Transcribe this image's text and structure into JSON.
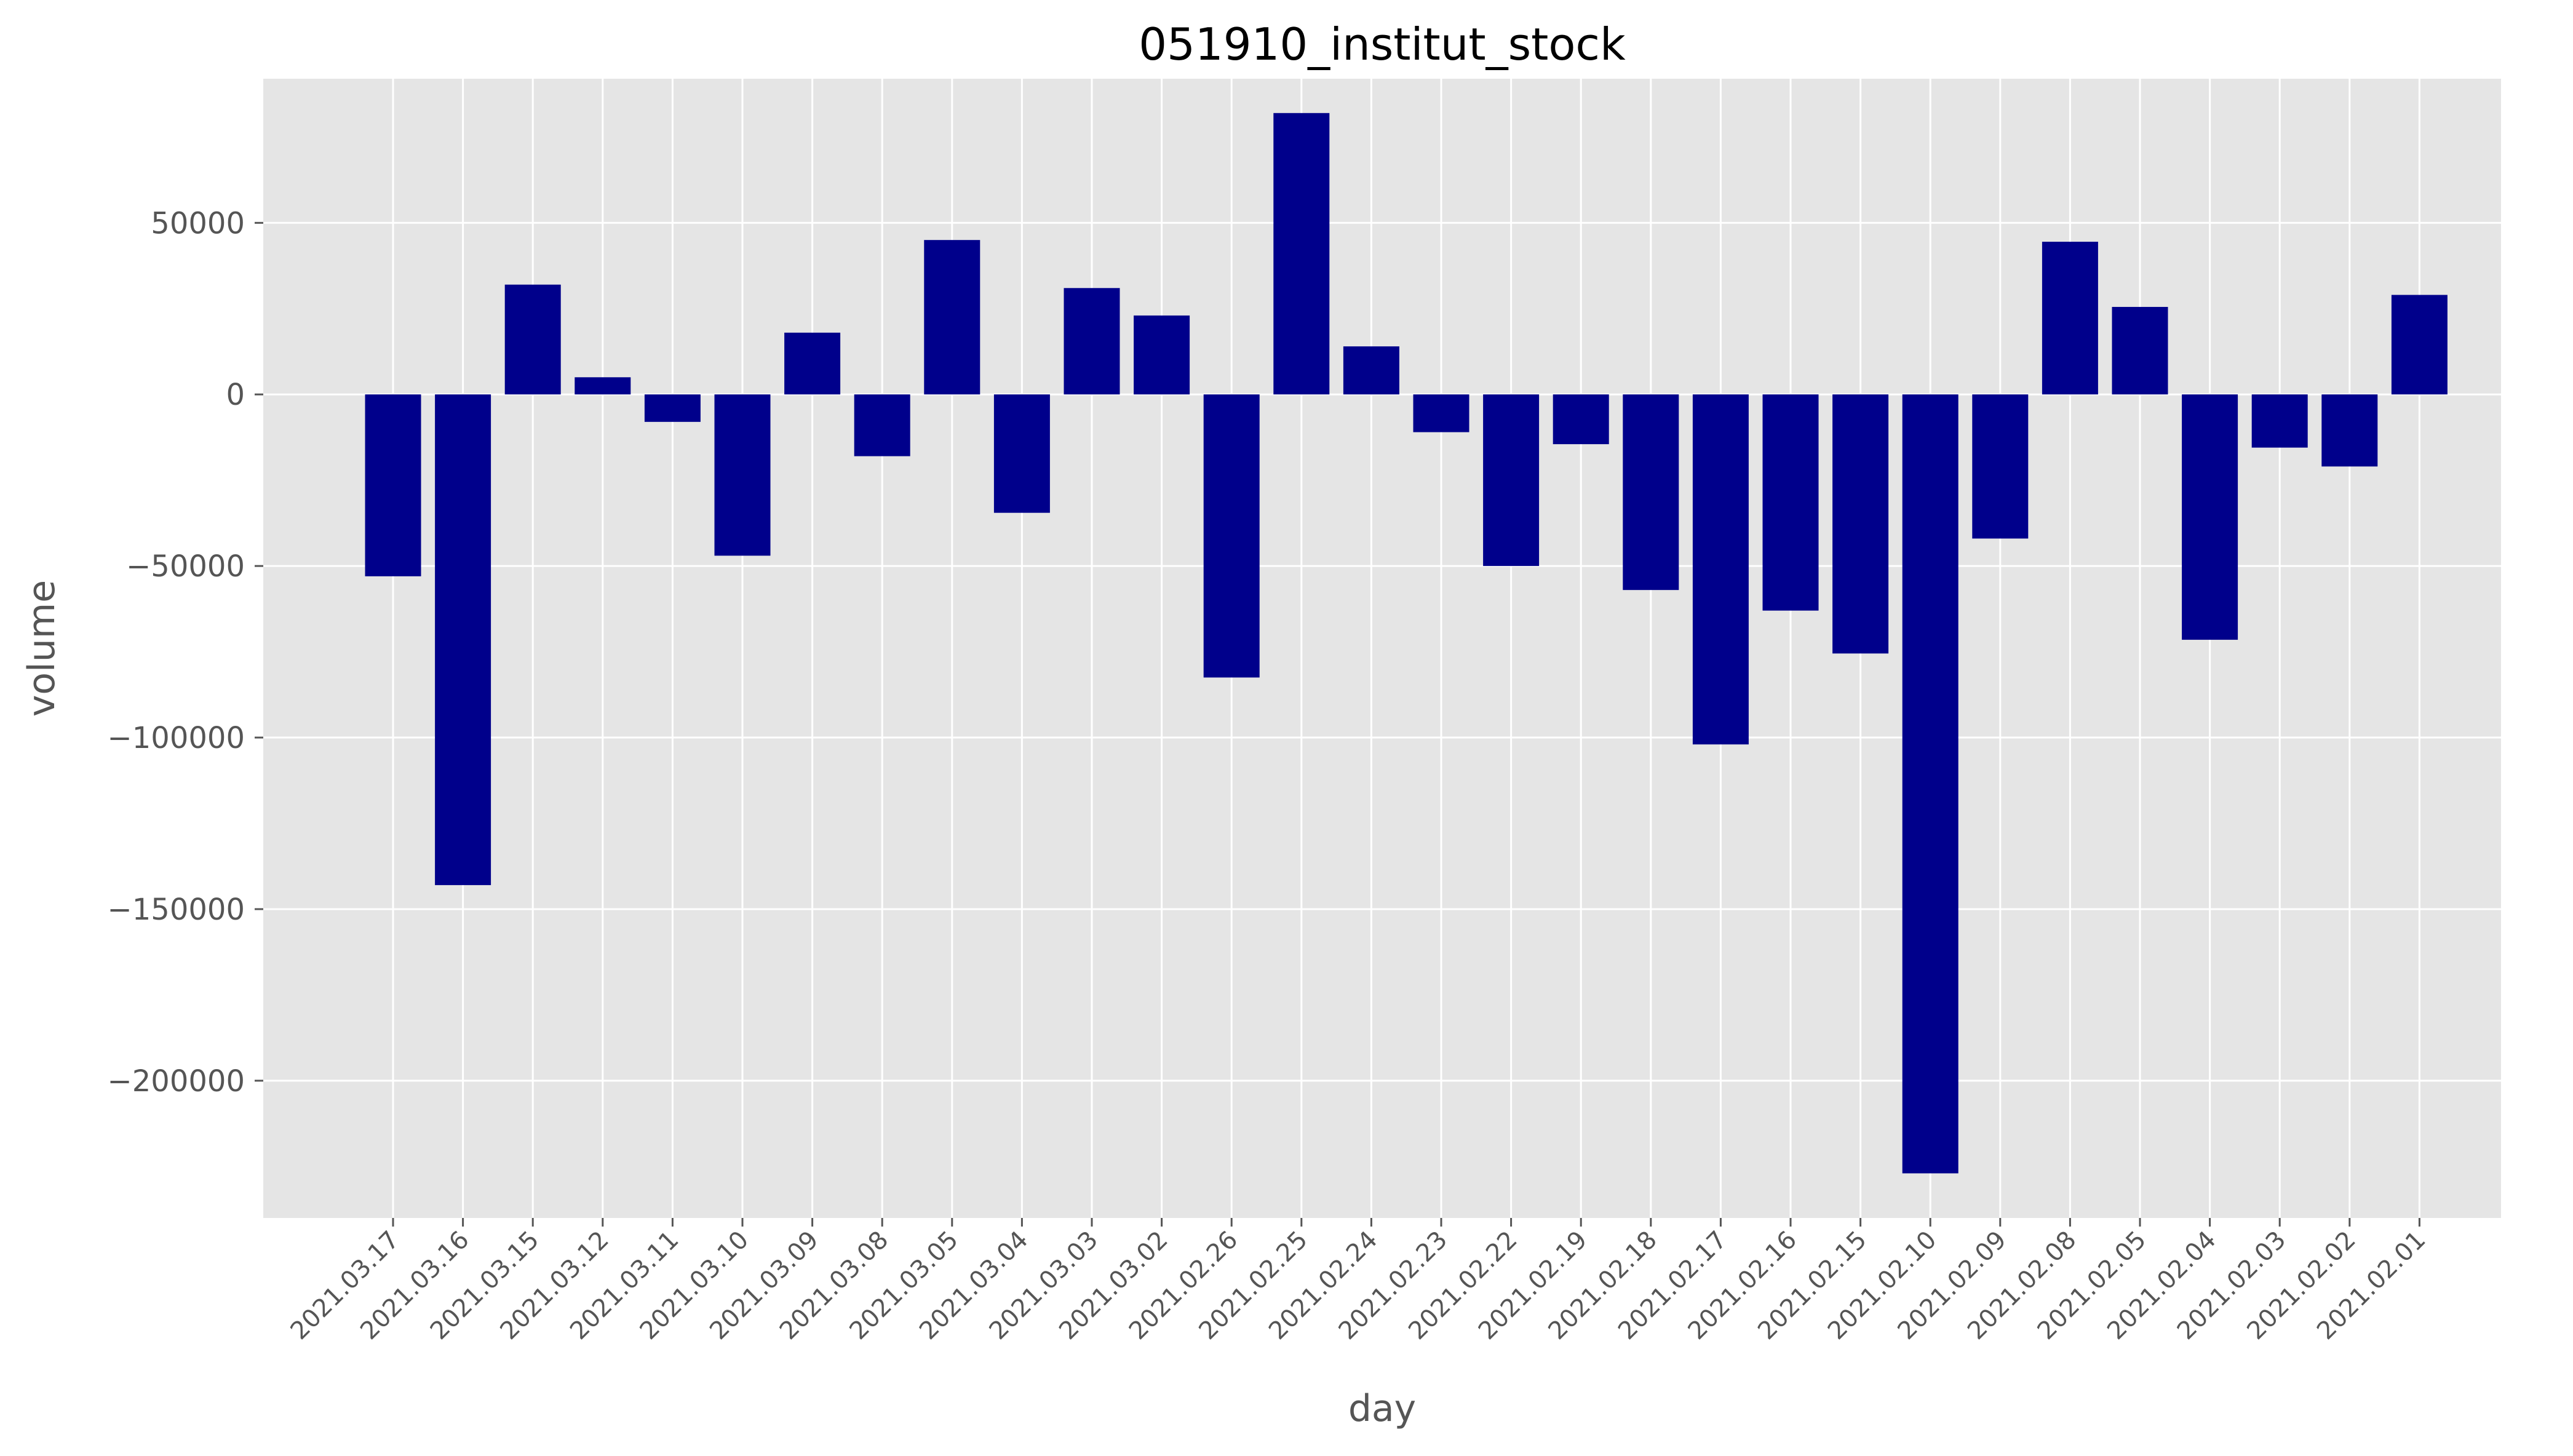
{
  "chart_data": {
    "type": "bar",
    "title": "051910_institut_stock",
    "xlabel": "day",
    "ylabel": "volume",
    "ylim": [
      -240000,
      92000
    ],
    "yticks": [
      50000,
      0,
      -50000,
      -100000,
      -150000,
      -200000
    ],
    "ytick_labels": [
      "50000",
      "0",
      "−50000",
      "−100000",
      "−150000",
      "−200000"
    ],
    "grid": true,
    "bar_color": "#00008b",
    "background_color": "#e5e5e5",
    "grid_color": "#ffffff",
    "categories": [
      "2021.03.17",
      "2021.03.16",
      "2021.03.15",
      "2021.03.12",
      "2021.03.11",
      "2021.03.10",
      "2021.03.09",
      "2021.03.08",
      "2021.03.05",
      "2021.03.04",
      "2021.03.03",
      "2021.03.02",
      "2021.02.26",
      "2021.02.25",
      "2021.02.24",
      "2021.02.23",
      "2021.02.22",
      "2021.02.19",
      "2021.02.18",
      "2021.02.17",
      "2021.02.16",
      "2021.02.15",
      "2021.02.10",
      "2021.02.09",
      "2021.02.08",
      "2021.02.05",
      "2021.02.04",
      "2021.02.03",
      "2021.02.02",
      "2021.02.01"
    ],
    "values": [
      -53000,
      -143000,
      32000,
      5000,
      -8000,
      -47000,
      18000,
      -18000,
      45000,
      -34500,
      31000,
      23000,
      -82500,
      82000,
      14000,
      -11000,
      -50000,
      -14500,
      -57000,
      -102000,
      -63000,
      -75500,
      -227000,
      -42000,
      44500,
      25500,
      -71500,
      -15500,
      -21000,
      29000
    ]
  }
}
